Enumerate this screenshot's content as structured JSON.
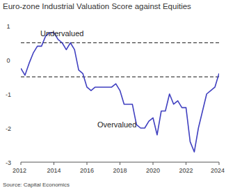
{
  "chart_data": {
    "type": "line",
    "title": "Euro-zone Industrial Valuation Score against Equities",
    "source": "Source: Capital Economics",
    "annotations": [
      "Undervalued",
      "Overvalued"
    ],
    "x": [
      2012.0,
      2012.25,
      2012.5,
      2012.75,
      2013.0,
      2013.25,
      2013.5,
      2013.75,
      2014.0,
      2014.25,
      2014.5,
      2014.75,
      2015.0,
      2015.25,
      2015.5,
      2015.75,
      2016.0,
      2016.25,
      2016.5,
      2016.75,
      2017.0,
      2017.25,
      2017.5,
      2017.75,
      2018.0,
      2018.25,
      2018.5,
      2018.75,
      2019.0,
      2019.25,
      2019.5,
      2019.75,
      2020.0,
      2020.25,
      2020.5,
      2020.75,
      2021.0,
      2021.25,
      2021.5,
      2021.75,
      2022.0,
      2022.25,
      2022.5,
      2022.75,
      2023.0,
      2023.25,
      2023.5,
      2023.75,
      2024.0
    ],
    "values": [
      -0.25,
      -0.45,
      -0.1,
      0.2,
      0.4,
      0.4,
      0.7,
      0.8,
      0.8,
      0.6,
      0.5,
      0.3,
      0.5,
      0.3,
      -0.3,
      -0.4,
      -0.8,
      -0.9,
      -0.8,
      -0.8,
      -0.8,
      -0.8,
      -0.8,
      -0.7,
      -0.9,
      -1.3,
      -1.3,
      -1.3,
      -1.9,
      -2.0,
      -2.0,
      -1.8,
      -1.7,
      -2.2,
      -1.5,
      -1.5,
      -1.0,
      -1.3,
      -1.2,
      -1.4,
      -1.4,
      -2.4,
      -2.7,
      -2.0,
      -1.5,
      -1.0,
      -0.9,
      -0.8,
      -0.4
    ],
    "color": "#4040c0",
    "hlines": [
      0.5,
      -0.5
    ],
    "xlim": [
      2012,
      2024
    ],
    "xticks": [
      2012,
      2014,
      2016,
      2018,
      2020,
      2022,
      2024
    ],
    "ylim": [
      -3,
      1
    ],
    "yticks": [
      -3,
      -2,
      -1,
      0,
      1
    ],
    "grid": false
  }
}
